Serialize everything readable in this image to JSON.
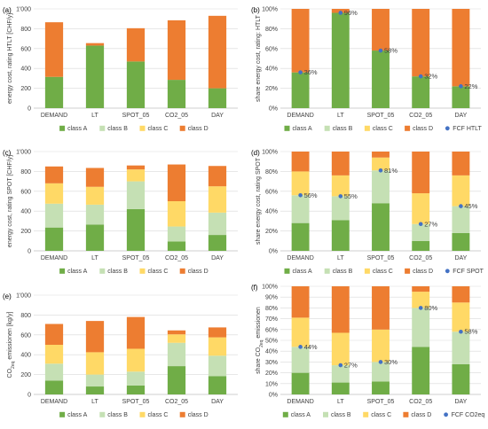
{
  "colors": {
    "class_A": "#70AD47",
    "class_B": "#C5E0B4",
    "class_C": "#FFD966",
    "class_D": "#ED7D31",
    "fcf_marker": "#4472C4"
  },
  "chart_data": [
    {
      "panel": "(a)",
      "type": "bar",
      "stacked": true,
      "categories": [
        "DEMAND",
        "LT",
        "SPOT_05",
        "CO2_05",
        "DAY"
      ],
      "ylabel": "energy cost, rating HTLT [CHF/y]",
      "ylim": [
        0,
        1000
      ],
      "yticks": [
        "0",
        "200",
        "400",
        "600",
        "800",
        "1'000"
      ],
      "tick_values": [
        0,
        200,
        400,
        600,
        800,
        1000
      ],
      "grid": true,
      "legend_position": "bottom",
      "series": [
        {
          "name": "class  A",
          "color_key": "class_A",
          "values": [
            315,
            630,
            470,
            285,
            200
          ]
        },
        {
          "name": "class  B",
          "color_key": "class_B",
          "values": [
            0,
            0,
            0,
            0,
            0
          ]
        },
        {
          "name": "class  C",
          "color_key": "class_C",
          "values": [
            0,
            0,
            0,
            0,
            0
          ]
        },
        {
          "name": "class  D",
          "color_key": "class_D",
          "values": [
            550,
            25,
            335,
            600,
            730
          ]
        }
      ]
    },
    {
      "panel": "(b)",
      "type": "bar",
      "stacked": true,
      "categories": [
        "DEMAND",
        "LT",
        "SPOT_05",
        "CO2_05",
        "DAY"
      ],
      "ylabel": "share energy cost, rating: HTLT",
      "ylim": [
        0,
        100
      ],
      "yticks": [
        "0%",
        "20%",
        "40%",
        "60%",
        "80%",
        "100%"
      ],
      "tick_values": [
        0,
        20,
        40,
        60,
        80,
        100
      ],
      "grid": true,
      "legend_position": "bottom",
      "series": [
        {
          "name": "class  A",
          "color_key": "class_A",
          "values": [
            36,
            96,
            58,
            32,
            22
          ]
        },
        {
          "name": "class  B",
          "color_key": "class_B",
          "values": [
            0,
            0,
            0,
            0,
            0
          ]
        },
        {
          "name": "class  C",
          "color_key": "class_C",
          "values": [
            0,
            0,
            0,
            0,
            0
          ]
        },
        {
          "name": "class  D",
          "color_key": "class_D",
          "values": [
            64,
            4,
            42,
            68,
            78
          ]
        }
      ],
      "marker_series": {
        "name": "FCF HTLT",
        "values": [
          36,
          96,
          58,
          32,
          22
        ],
        "labels": [
          "36%",
          "96%",
          "58%",
          "32%",
          "22%"
        ]
      }
    },
    {
      "panel": "(c)",
      "type": "bar",
      "stacked": true,
      "categories": [
        "DEMAND",
        "LT",
        "SPOT_05",
        "CO2_05",
        "DAY"
      ],
      "ylabel": "energy cost, rating SPOT [CHF/y]",
      "ylim": [
        0,
        1000
      ],
      "yticks": [
        "0",
        "200",
        "400",
        "600",
        "800",
        "1'000"
      ],
      "tick_values": [
        0,
        200,
        400,
        600,
        800,
        1000
      ],
      "grid": true,
      "legend_position": "bottom",
      "series": [
        {
          "name": "class  A",
          "color_key": "class_A",
          "values": [
            235,
            265,
            420,
            95,
            160
          ]
        },
        {
          "name": "class  B",
          "color_key": "class_B",
          "values": [
            240,
            200,
            280,
            150,
            225
          ]
        },
        {
          "name": "class  C",
          "color_key": "class_C",
          "values": [
            205,
            180,
            120,
            255,
            265
          ]
        },
        {
          "name": "class  D",
          "color_key": "class_D",
          "values": [
            170,
            190,
            40,
            370,
            205
          ]
        }
      ]
    },
    {
      "panel": "(d)",
      "type": "bar",
      "stacked": true,
      "categories": [
        "DEMAND",
        "LT",
        "SPOT_05",
        "CO2_05",
        "DAY"
      ],
      "ylabel": "share energy cost, rating SPOT",
      "ylim": [
        0,
        100
      ],
      "yticks": [
        "0%",
        "20%",
        "40%",
        "60%",
        "80%",
        "100%"
      ],
      "tick_values": [
        0,
        20,
        40,
        60,
        80,
        100
      ],
      "grid": true,
      "legend_position": "bottom",
      "series": [
        {
          "name": "class  A",
          "color_key": "class_A",
          "values": [
            28,
            31,
            48,
            10,
            18
          ]
        },
        {
          "name": "class  B",
          "color_key": "class_B",
          "values": [
            28,
            24,
            33,
            17,
            27
          ]
        },
        {
          "name": "class  C",
          "color_key": "class_C",
          "values": [
            24,
            21,
            13,
            31,
            31
          ]
        },
        {
          "name": "class  D",
          "color_key": "class_D",
          "values": [
            20,
            24,
            6,
            42,
            24
          ]
        }
      ],
      "marker_series": {
        "name": "FCF SPOT",
        "values": [
          56,
          55,
          81,
          27,
          45
        ],
        "labels": [
          "56%",
          "55%",
          "81%",
          "27%",
          "45%"
        ]
      }
    },
    {
      "panel": "(e)",
      "type": "bar",
      "stacked": true,
      "categories": [
        "DEMAND",
        "LT",
        "SPOT_05",
        "CO2_05",
        "DAY"
      ],
      "ylabel_main": "CO",
      "ylabel_sub": "2eq",
      "ylabel_tail": " emissionen  [kg/y]",
      "ylim": [
        0,
        1000
      ],
      "yticks": [
        "0",
        "200",
        "400",
        "600",
        "800",
        "1'000"
      ],
      "tick_values": [
        0,
        200,
        400,
        600,
        800,
        1000
      ],
      "grid": true,
      "legend_position": "bottom",
      "series": [
        {
          "name": "class  A",
          "color_key": "class_A",
          "values": [
            140,
            80,
            90,
            285,
            185
          ]
        },
        {
          "name": "class  B",
          "color_key": "class_B",
          "values": [
            170,
            120,
            140,
            235,
            205
          ]
        },
        {
          "name": "class  C",
          "color_key": "class_C",
          "values": [
            190,
            225,
            230,
            85,
            185
          ]
        },
        {
          "name": "class  D",
          "color_key": "class_D",
          "values": [
            210,
            315,
            320,
            40,
            100
          ]
        }
      ]
    },
    {
      "panel": "(f)",
      "type": "bar",
      "stacked": true,
      "categories": [
        "DEMAND",
        "LT",
        "SPOT_05",
        "CO2_05",
        "DAY"
      ],
      "ylabel_main": "share CO",
      "ylabel_sub": "2eq",
      "ylabel_tail": " emissionen",
      "ylim": [
        0,
        100
      ],
      "yticks": [
        "0%",
        "10%",
        "20%",
        "30%",
        "40%",
        "50%",
        "60%",
        "70%",
        "80%",
        "90%",
        "100%"
      ],
      "tick_values": [
        0,
        10,
        20,
        30,
        40,
        50,
        60,
        70,
        80,
        90,
        100
      ],
      "grid": true,
      "legend_position": "bottom",
      "series": [
        {
          "name": "class  A",
          "color_key": "class_A",
          "values": [
            20,
            11,
            12,
            44,
            28
          ]
        },
        {
          "name": "class  B",
          "color_key": "class_B",
          "values": [
            24,
            16,
            18,
            36,
            30
          ]
        },
        {
          "name": "class  C",
          "color_key": "class_C",
          "values": [
            27,
            30,
            30,
            15,
            27
          ]
        },
        {
          "name": "class  D",
          "color_key": "class_D",
          "values": [
            29,
            43,
            40,
            5,
            15
          ]
        }
      ],
      "marker_series": {
        "name": "FCF CO2eq",
        "values": [
          44,
          27,
          30,
          80,
          58
        ],
        "labels": [
          "44%",
          "27%",
          "30%",
          "80%",
          "58%"
        ]
      }
    }
  ]
}
